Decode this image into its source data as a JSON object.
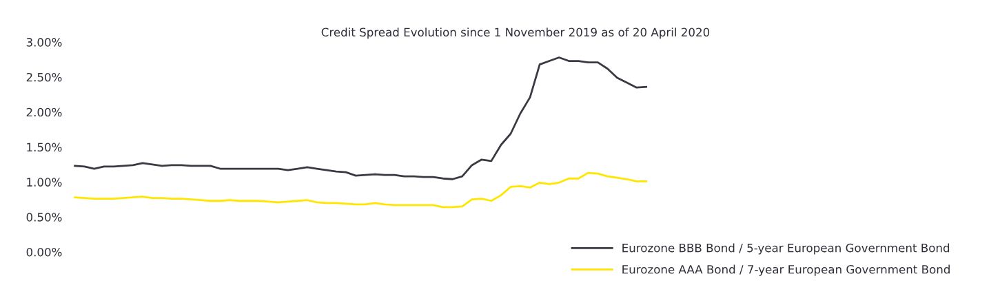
{
  "chart_data": {
    "type": "line",
    "title": "Credit Spread Evolution since 1 November 2019 as of 20 April 2020",
    "categories": [
      null,
      null,
      null,
      null,
      null,
      null,
      null,
      null,
      null,
      null,
      null,
      null,
      null,
      null,
      null,
      null,
      null,
      null,
      null,
      null,
      null,
      null,
      null,
      null,
      null,
      null,
      null,
      null,
      null,
      null,
      null,
      null,
      null,
      null,
      null,
      null,
      null,
      null,
      null,
      null,
      null,
      null,
      null,
      null,
      null,
      null,
      null,
      null,
      null,
      null,
      null,
      null,
      null,
      null,
      null,
      null,
      null,
      null,
      null,
      null,
      null,
      null,
      null,
      null,
      null,
      null,
      null,
      null,
      null,
      null,
      null,
      null,
      null,
      null,
      null,
      null,
      null,
      null,
      null,
      null,
      null,
      null,
      null,
      null,
      null,
      null,
      null,
      null,
      null,
      null,
      null,
      null
    ],
    "series": [
      {
        "name": "Eurozone BBB Bond / 5-year European Government Bond",
        "color": "#3a3a42",
        "values": [
          1.23,
          1.22,
          1.19,
          1.22,
          1.22,
          1.23,
          1.24,
          1.27,
          1.25,
          1.23,
          1.24,
          1.24,
          1.23,
          1.23,
          1.23,
          1.19,
          1.19,
          1.19,
          1.19,
          1.19,
          1.19,
          1.19,
          1.17,
          1.19,
          1.21,
          1.19,
          1.17,
          1.15,
          1.14,
          1.09,
          1.1,
          1.11,
          1.1,
          1.1,
          1.08,
          1.08,
          1.07,
          1.07,
          1.05,
          1.04,
          1.08,
          1.24,
          1.32,
          1.3,
          1.53,
          1.69,
          1.98,
          2.21,
          2.68,
          2.73,
          2.78,
          2.73,
          2.73,
          2.71,
          2.71,
          2.62,
          2.49,
          2.42,
          2.35,
          2.36,
          null,
          null,
          null,
          null,
          null,
          null,
          null,
          null,
          null,
          null,
          null,
          null,
          null,
          null,
          null,
          null,
          null,
          null,
          null,
          null,
          null,
          null,
          null,
          null,
          null,
          null,
          null,
          null,
          null,
          null,
          null,
          null
        ]
      },
      {
        "name": "Eurozone AAA Bond / 7-year European Government Bond",
        "color": "#ffe600",
        "values": [
          0.78,
          0.77,
          0.76,
          0.76,
          0.76,
          0.77,
          0.78,
          0.79,
          0.77,
          0.77,
          0.76,
          0.76,
          0.75,
          0.74,
          0.73,
          0.73,
          0.74,
          0.73,
          0.73,
          0.73,
          0.72,
          0.71,
          0.72,
          0.73,
          0.74,
          0.71,
          0.7,
          0.7,
          0.69,
          0.68,
          0.68,
          0.7,
          0.68,
          0.67,
          0.67,
          0.67,
          0.67,
          0.67,
          0.64,
          0.64,
          0.65,
          0.75,
          0.76,
          0.73,
          0.81,
          0.93,
          0.94,
          0.92,
          0.99,
          0.97,
          0.99,
          1.05,
          1.05,
          1.13,
          1.12,
          1.08,
          1.06,
          1.04,
          1.01,
          1.01,
          null,
          null,
          null,
          null,
          null,
          null,
          null,
          null,
          null,
          null,
          null,
          null,
          null,
          null,
          null,
          null,
          null,
          null,
          null,
          null,
          null,
          null,
          null,
          null,
          null,
          null,
          null,
          null,
          null,
          null,
          null,
          null
        ]
      }
    ],
    "ylim": [
      0,
      3
    ],
    "yticks": [
      {
        "value": 0,
        "label": "0.00%"
      },
      {
        "value": 0.5,
        "label": "0.50%"
      },
      {
        "value": 1,
        "label": "1.00%"
      },
      {
        "value": 1.5,
        "label": "1.50%"
      },
      {
        "value": 2,
        "label": "2.00%"
      },
      {
        "value": 2.5,
        "label": "2.50%"
      },
      {
        "value": 3,
        "label": "3.00%"
      }
    ],
    "tick_labels": "y",
    "grid": false,
    "legend": "bottom right",
    "marker": "none",
    "line_style": "solid"
  }
}
